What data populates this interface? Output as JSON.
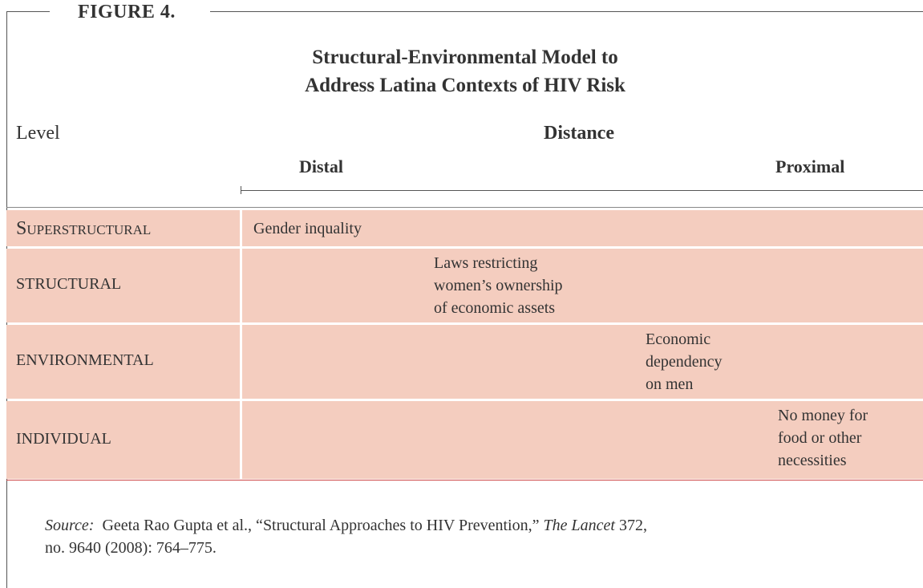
{
  "figure": {
    "label": "FIGURE 4.",
    "title": [
      "Structural-Environmental Model to",
      "Address Latina Contexts of HIV Risk"
    ],
    "level_header": "Level",
    "distance_header": "Distance",
    "distal": "Distal",
    "proximal": "Proximal",
    "rows": [
      {
        "level": "Superstructural",
        "text": [
          "Gender inquality"
        ]
      },
      {
        "level": "STRUCTURAL",
        "text": [
          "Laws restricting",
          "women’s ownership",
          "of economic assets"
        ]
      },
      {
        "level": "ENVIRONMENTAL",
        "text": [
          "Economic",
          "dependency",
          "on men"
        ]
      },
      {
        "level": "INDIVIDUAL",
        "text": [
          "No money for",
          "food or other",
          "necessities"
        ]
      }
    ],
    "source": {
      "label": "Source:",
      "text1": "Geeta Rao Gupta et al., “Structural Approaches to HIV Prevention,”",
      "journal": "The Lancet",
      "text2": "372,",
      "line2": "no. 9640 (2008): 764–775."
    }
  }
}
